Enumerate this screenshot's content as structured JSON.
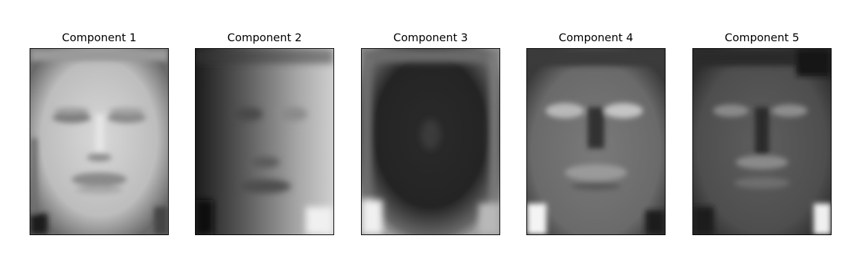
{
  "panels": [
    {
      "title": "Component 1",
      "image": "component-1-face-image",
      "base_color": "#bdbdbd"
    },
    {
      "title": "Component 2",
      "image": "component-2-face-image",
      "base_color": "#8a8a8a"
    },
    {
      "title": "Component 3",
      "image": "component-3-face-image",
      "base_color": "#2a2a2a"
    },
    {
      "title": "Component 4",
      "image": "component-4-face-image",
      "base_color": "#6e6e6e"
    },
    {
      "title": "Component 5",
      "image": "component-5-face-image",
      "base_color": "#555555"
    }
  ]
}
